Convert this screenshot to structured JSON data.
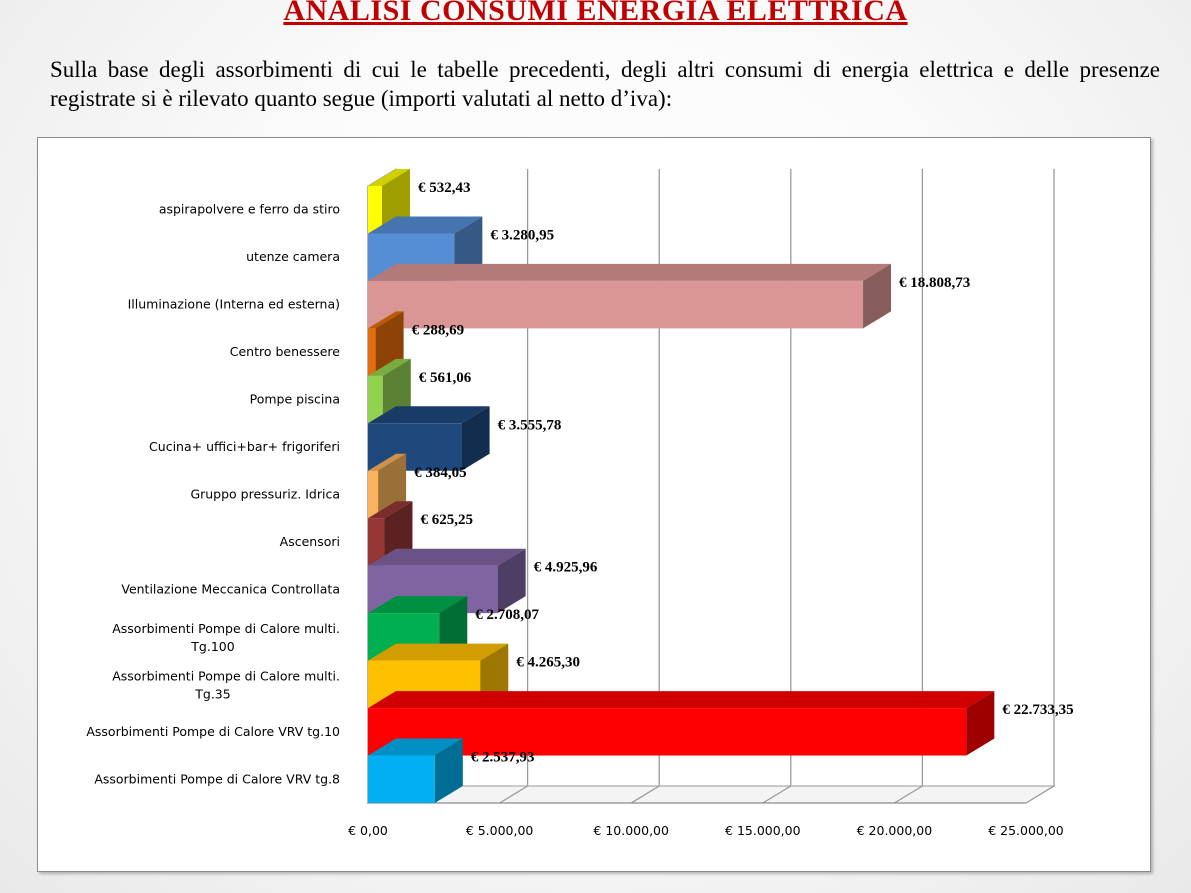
{
  "slide": {
    "title": "ANALISI CONSUMI ENERGIA ELETTRICA",
    "intro": "Sulla base degli assorbimenti di cui le tabelle precedenti, degli altri consumi di energia elettrica e delle presenze registrate si è rilevato quanto segue (importi valutati al netto d’iva):"
  },
  "chart_data": {
    "type": "bar",
    "orientation": "horizontal",
    "style": "3d",
    "title": "",
    "xlabel": "",
    "ylabel": "",
    "xlim": [
      0,
      25000
    ],
    "grid": true,
    "legend": "none",
    "tick_labels": [
      "€ 0,00",
      "€ 5.000,00",
      "€ 10.000,00",
      "€ 15.000,00",
      "€ 20.000,00",
      "€ 25.000,00"
    ],
    "bars": [
      {
        "label": "aspirapolvere e ferro da stiro",
        "value": 532.43,
        "data_label": "€ 532,43",
        "color": "#ffff00"
      },
      {
        "label": "utenze camera",
        "value": 3280.95,
        "data_label": "€ 3.280,95",
        "color": "#558ed5"
      },
      {
        "label": "Illuminazione (Interna ed esterna)",
        "value": 18808.73,
        "data_label": "€ 18.808,73",
        "color": "#d99694"
      },
      {
        "label": "Centro benessere",
        "value": 288.69,
        "data_label": "€ 288,69",
        "color": "#e46c0a"
      },
      {
        "label": "Pompe piscina",
        "value": 561.06,
        "data_label": "€ 561,06",
        "color": "#92d050"
      },
      {
        "label": "Cucina+ uffici+bar+  frigoriferi",
        "value": 3555.78,
        "data_label": "€ 3.555,78",
        "color": "#1f497d"
      },
      {
        "label": "Gruppo pressuriz. Idrica",
        "value": 384.05,
        "data_label": "€ 384,05",
        "color": "#fab35a"
      },
      {
        "label": "Ascensori",
        "value": 625.25,
        "data_label": "€ 625,25",
        "color": "#953735"
      },
      {
        "label": "Ventilazione Meccanica Controllata",
        "value": 4925.96,
        "data_label": "€ 4.925,96",
        "color": "#8064a2"
      },
      {
        "label": "Assorbimenti Pompe di Calore multi. Tg.100",
        "lines": [
          "Assorbimenti Pompe di Calore multi.",
          "Tg.100"
        ],
        "value": 2708.07,
        "data_label": "€ 2.708,07",
        "color": "#00b050"
      },
      {
        "label": "Assorbimenti Pompe di Calore multi. Tg.35",
        "lines": [
          "Assorbimenti Pompe di Calore multi.",
          "Tg.35"
        ],
        "value": 4265.3,
        "data_label": "€ 4.265,30",
        "color": "#ffc000"
      },
      {
        "label": "Assorbimenti Pompe di Calore VRV tg.10",
        "value": 22733.35,
        "data_label": "€ 22.733,35",
        "color": "#ff0000"
      },
      {
        "label": "Assorbimenti Pompe di Calore VRV tg.8",
        "value": 2537.93,
        "data_label": "€ 2.537,93",
        "color": "#00b0f0"
      }
    ]
  }
}
